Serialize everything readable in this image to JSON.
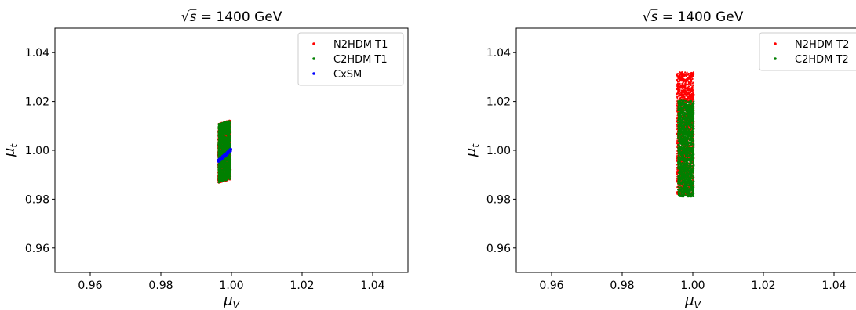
{
  "chart_data": [
    {
      "type": "scatter",
      "title": "√s = 1400 GeV",
      "title_parts": {
        "root": "√",
        "var": "s",
        "rest": " = 1400 GeV"
      },
      "xlabel": "μ",
      "xlabel_sub": "V",
      "ylabel": "μ",
      "ylabel_sub": "t",
      "xlim": [
        0.95,
        1.05
      ],
      "ylim": [
        0.95,
        1.05
      ],
      "xticks": [
        "0.96",
        "0.98",
        "1.00",
        "1.02",
        "1.04"
      ],
      "yticks": [
        "0.96",
        "0.98",
        "1.00",
        "1.02",
        "1.04"
      ],
      "grid": false,
      "legend_position": "top-right",
      "series": [
        {
          "name": "N2HDM T1",
          "color": "#ff0000",
          "region": {
            "type": "band",
            "x": [
              0.9962,
              0.9998
            ],
            "y_min_left": 0.9865,
            "y_max_left": 1.011,
            "y_min_right": 0.988,
            "y_max_right": 1.0125
          }
        },
        {
          "name": "C2HDM T1",
          "color": "#008000",
          "region": {
            "type": "band",
            "x": [
              0.9963,
              0.9997
            ],
            "y_min_left": 0.9867,
            "y_max_left": 1.0108,
            "y_min_right": 0.9882,
            "y_max_right": 1.0123
          }
        },
        {
          "name": "CxSM",
          "color": "#0000ff",
          "region": {
            "type": "line",
            "x": [
              0.9962,
              0.9998
            ],
            "y": [
              0.9955,
              1.0001
            ]
          }
        }
      ]
    },
    {
      "type": "scatter",
      "title": "√s = 1400 GeV",
      "title_parts": {
        "root": "√",
        "var": "s",
        "rest": " = 1400 GeV"
      },
      "xlabel": "μ",
      "xlabel_sub": "V",
      "ylabel": "μ",
      "ylabel_sub": "t",
      "xlim": [
        0.95,
        1.05
      ],
      "ylim": [
        0.95,
        1.05
      ],
      "xticks": [
        "0.96",
        "0.98",
        "1.00",
        "1.02",
        "1.04"
      ],
      "yticks": [
        "0.96",
        "0.98",
        "1.00",
        "1.02",
        "1.04"
      ],
      "grid": false,
      "legend_position": "top-right",
      "series": [
        {
          "name": "N2HDM T2",
          "color": "#ff0000",
          "region": {
            "type": "rect",
            "x": [
              0.9955,
              1.0003
            ],
            "y": [
              0.9815,
              1.032
            ]
          }
        },
        {
          "name": "C2HDM T2",
          "color": "#008000",
          "region": {
            "type": "rect",
            "x": [
              0.9958,
              1.0003
            ],
            "y": [
              0.981,
              1.0205
            ]
          }
        }
      ]
    }
  ]
}
